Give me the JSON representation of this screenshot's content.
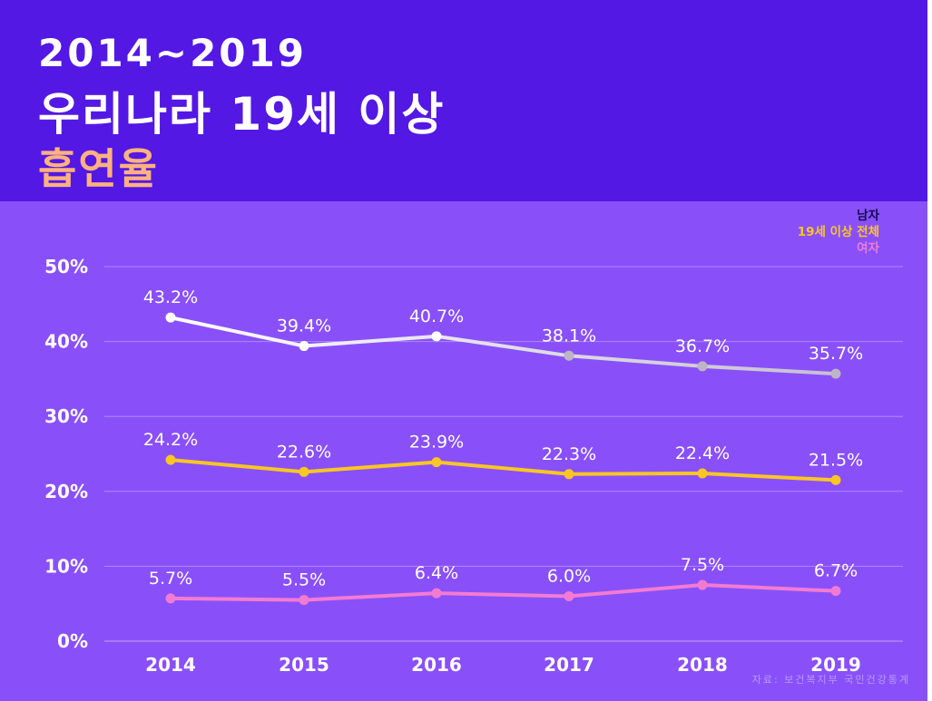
{
  "header": {
    "line1": "2014~2019",
    "line2": "우리나라 19세 이상",
    "line3": "흡연율"
  },
  "legend": {
    "male": "남자",
    "total": "19세 이상 전체",
    "female": "여자"
  },
  "source": "자료: 보건복지부 국민건강통계",
  "colors": {
    "header_bg": "#5318e4",
    "panel_bg": "#8950fa",
    "male": "#ffffff",
    "total": "#f9c623",
    "female": "#f27bd2",
    "accent_title": "#ffb27f"
  },
  "chart_data": {
    "type": "line",
    "title": "2014~2019 우리나라 19세 이상 흡연율",
    "categories": [
      "2014",
      "2015",
      "2016",
      "2017",
      "2018",
      "2019"
    ],
    "ylim": [
      0,
      50
    ],
    "yticks": [
      "0%",
      "10%",
      "20%",
      "30%",
      "40%",
      "50%"
    ],
    "ytick_values": [
      0,
      10,
      20,
      30,
      40,
      50
    ],
    "xlabel": "",
    "ylabel": "",
    "grid": true,
    "legend_position": "top-right",
    "series": [
      {
        "name": "남자",
        "values": [
          43.2,
          39.4,
          40.7,
          38.1,
          36.7,
          35.7
        ],
        "labels": [
          "43.2%",
          "39.4%",
          "40.7%",
          "38.1%",
          "36.7%",
          "35.7%"
        ]
      },
      {
        "name": "19세 이상 전체",
        "values": [
          24.2,
          22.6,
          23.9,
          22.3,
          22.4,
          21.5
        ],
        "labels": [
          "24.2%",
          "22.6%",
          "23.9%",
          "22.3%",
          "22.4%",
          "21.5%"
        ]
      },
      {
        "name": "여자",
        "values": [
          5.7,
          5.5,
          6.4,
          6.0,
          7.5,
          6.7
        ],
        "labels": [
          "5.7%",
          "5.5%",
          "6.4%",
          "6.0%",
          "7.5%",
          "6.7%"
        ]
      }
    ]
  }
}
